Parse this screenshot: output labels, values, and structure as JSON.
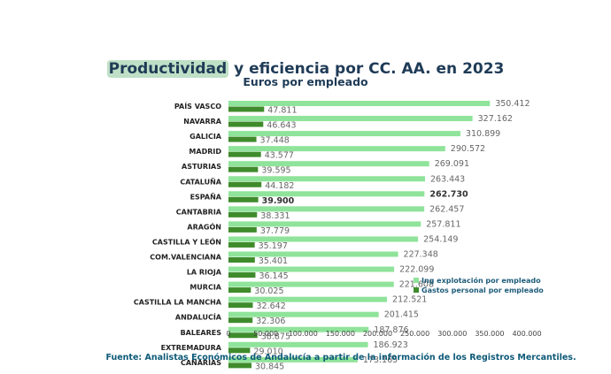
{
  "title": {
    "highlight": "Productividad",
    "rest": " y eficiencia por CC. AA. en 2023"
  },
  "subtitle": "Euros por empleado",
  "source": "Fuente: Analistas Económicos de Andalucía a partir de la información de los Registros Mercantiles.",
  "colors": {
    "ingresos": "#8fe39a",
    "gastos": "#3f8b2c",
    "label": "#666666",
    "category": "#222222",
    "title": "#1f3b57",
    "legend": "#1f5c7a",
    "highlight_bg": "#bfe0c6"
  },
  "chart_data": {
    "type": "bar",
    "orientation": "horizontal",
    "title": "Productividad y eficiencia por CC. AA. en 2023",
    "subtitle": "Euros por empleado",
    "categories": [
      "PAÍS VASCO",
      "NAVARRA",
      "GALICIA",
      "MADRID",
      "ASTURIAS",
      "CATALUÑA",
      "ESPAÑA",
      "CANTABRIA",
      "ARAGÓN",
      "CASTILLA Y LEÓN",
      "COM.VALENCIANA",
      "LA RIOJA",
      "MURCIA",
      "CASTILLA LA MANCHA",
      "ANDALUCÍA",
      "BALEARES",
      "EXTREMADURA",
      "CANARIAS"
    ],
    "series": [
      {
        "name": "Ing explotación por empleado",
        "values": [
          350412,
          327162,
          310899,
          290572,
          269091,
          263443,
          262730,
          262457,
          257811,
          254149,
          227348,
          222099,
          221608,
          212521,
          201415,
          187876,
          186923,
          173165
        ],
        "labels": [
          "350.412",
          "327.162",
          "310.899",
          "290.572",
          "269.091",
          "263.443",
          "262.730",
          "262.457",
          "257.811",
          "254.149",
          "227.348",
          "222.099",
          "221.608",
          "212.521",
          "201.415",
          "187.876",
          "186.923",
          "173.165"
        ]
      },
      {
        "name": "Gastos personal  por empleado",
        "values": [
          47811,
          46643,
          37448,
          43577,
          39595,
          44182,
          39900,
          38331,
          37779,
          35197,
          35401,
          36145,
          30025,
          32642,
          32306,
          38875,
          29010,
          30845
        ],
        "labels": [
          "47.811",
          "46.643",
          "37.448",
          "43.577",
          "39.595",
          "44.182",
          "39.900",
          "38.331",
          "37.779",
          "35.197",
          "35.401",
          "36.145",
          "30.025",
          "32.642",
          "32.306",
          "38.875",
          "29.010",
          "30.845"
        ]
      }
    ],
    "highlight_category": "ESPAÑA",
    "xlim": [
      0,
      400000
    ],
    "xticks": [
      0,
      50000,
      100000,
      150000,
      200000,
      250000,
      300000,
      350000,
      400000
    ],
    "xtick_labels": [
      "0",
      "50.000",
      "100.000",
      "150.000",
      "200.000",
      "250.000",
      "300.000",
      "350.000",
      "400.000"
    ],
    "grid": false,
    "legend_position": "right"
  }
}
